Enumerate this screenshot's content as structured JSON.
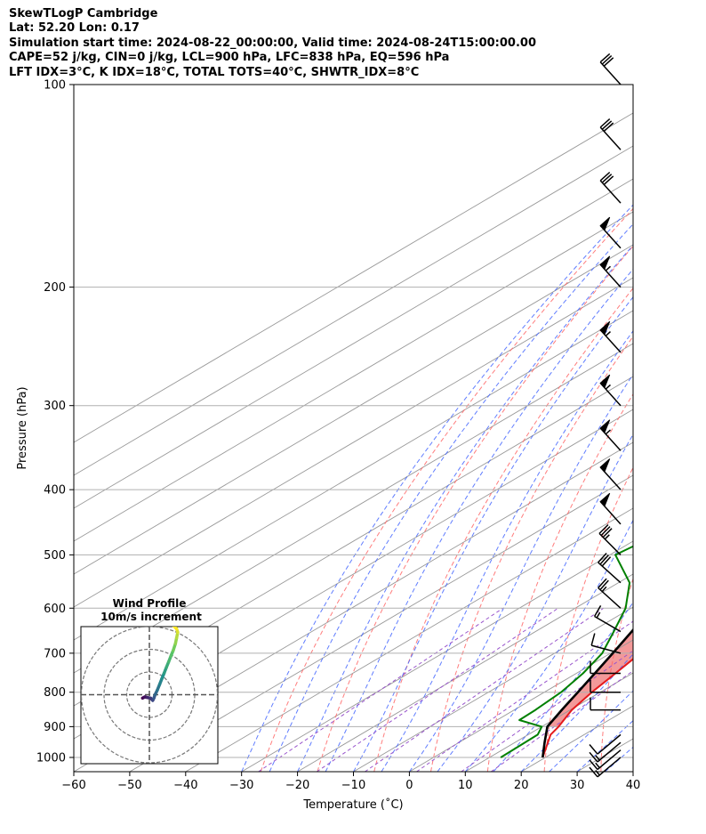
{
  "header": {
    "line1": "SkewTLogP Cambridge",
    "line2": "Lat: 52.20   Lon: 0.17",
    "line3": "Simulation start time: 2024-08-22_00:00:00, Valid time: 2024-08-24T15:00:00.00",
    "line4": "CAPE=52 j/kg, CIN=0 j/kg, LCL=900 hPa, LFC=838 hPa, EQ=596 hPa",
    "line5": "LFT IDX=3°C, K IDX=18°C, TOTAL TOTS=40°C, SHWTR_IDX=8°C"
  },
  "chart_data": {
    "type": "line",
    "subtype": "skew-T log-P diagram",
    "xlabel": "Temperature (˚C)",
    "ylabel": "Pressure (hPa)",
    "xlim": [
      -60,
      40
    ],
    "ylim": [
      1050,
      100
    ],
    "x_ticks": [
      -60,
      -50,
      -40,
      -30,
      -20,
      -10,
      0,
      10,
      20,
      30,
      40
    ],
    "x_tick_labels": [
      "−60",
      "−50",
      "−40",
      "−30",
      "−20",
      "−10",
      "0",
      "10",
      "20",
      "30",
      "40"
    ],
    "y_ticks": [
      1000,
      900,
      800,
      700,
      600,
      500,
      400,
      300,
      200,
      100
    ],
    "y_tick_labels": [
      "1000",
      "900",
      "800",
      "700",
      "600",
      "500",
      "400",
      "300",
      "200",
      "100"
    ],
    "colors": {
      "temperature": "#e41a1c",
      "dewpoint": "#008000",
      "parcel": "#000000",
      "cape_fill": "#7fb3d5",
      "cin_fill": "#f08080",
      "isotherm": "#999999",
      "dry_adiabat": "#ff6666",
      "moist_adiabat": "#4466ff",
      "mixing_ratio": "#9955cc",
      "wind_barb": "#000000"
    },
    "temperature_profile": [
      {
        "p": 1000,
        "t": 19.5
      },
      {
        "p": 925,
        "t": 14.0
      },
      {
        "p": 900,
        "t": 13.0
      },
      {
        "p": 850,
        "t": 10.3
      },
      {
        "p": 800,
        "t": 8.5
      },
      {
        "p": 750,
        "t": 7.0
      },
      {
        "p": 700,
        "t": 5.3
      },
      {
        "p": 650,
        "t": 4.0
      },
      {
        "p": 600,
        "t": 1.5
      },
      {
        "p": 550,
        "t": -1.7
      },
      {
        "p": 500,
        "t": -5.5
      },
      {
        "p": 450,
        "t": -10.3
      },
      {
        "p": 400,
        "t": -16.0
      },
      {
        "p": 350,
        "t": -23.0
      },
      {
        "p": 300,
        "t": -31.0
      },
      {
        "p": 275,
        "t": -35.6
      },
      {
        "p": 250,
        "t": -40.5
      },
      {
        "p": 225,
        "t": -45.5
      },
      {
        "p": 200,
        "t": -50.0
      },
      {
        "p": 175,
        "t": -53.0
      },
      {
        "p": 150,
        "t": -55.0
      },
      {
        "p": 125,
        "t": -56.0
      },
      {
        "p": 100,
        "t": -56.0
      }
    ],
    "dewpoint_profile": [
      {
        "p": 1000,
        "t": 12.0
      },
      {
        "p": 925,
        "t": 11.7
      },
      {
        "p": 900,
        "t": 10.0
      },
      {
        "p": 880,
        "t": 4.0
      },
      {
        "p": 850,
        "t": 3.8
      },
      {
        "p": 800,
        "t": 3.0
      },
      {
        "p": 750,
        "t": 1.2
      },
      {
        "p": 700,
        "t": -1.5
      },
      {
        "p": 650,
        "t": -6.0
      },
      {
        "p": 600,
        "t": -11.0
      },
      {
        "p": 550,
        "t": -18.0
      },
      {
        "p": 500,
        "t": -29.0
      },
      {
        "p": 475,
        "t": -28.0
      },
      {
        "p": 450,
        "t": -28.0
      },
      {
        "p": 425,
        "t": -25.5
      },
      {
        "p": 400,
        "t": -28.0
      },
      {
        "p": 370,
        "t": -33.0
      },
      {
        "p": 340,
        "t": -39.0
      },
      {
        "p": 300,
        "t": -46.0
      },
      {
        "p": 250,
        "t": -55.0
      },
      {
        "p": 200,
        "t": -63.0
      },
      {
        "p": 185,
        "t": -66.0
      },
      {
        "p": 175,
        "t": -69.0
      },
      {
        "p": 165,
        "t": -72.0
      },
      {
        "p": 160,
        "t": -75.0
      },
      {
        "p": 150,
        "t": -79.0
      },
      {
        "p": 125,
        "t": -88.0
      },
      {
        "p": 100,
        "t": -100.0
      }
    ],
    "parcel_profile": [
      {
        "p": 1000,
        "t": 19.5
      },
      {
        "p": 950,
        "t": 15.3
      },
      {
        "p": 900,
        "t": 11.0
      },
      {
        "p": 850,
        "t": 8.5
      },
      {
        "p": 800,
        "t": 6.0
      },
      {
        "p": 750,
        "t": 3.3
      },
      {
        "p": 700,
        "t": 0.4
      },
      {
        "p": 650,
        "t": -2.8
      },
      {
        "p": 600,
        "t": -6.4
      },
      {
        "p": 550,
        "t": -10.4
      },
      {
        "p": 500,
        "t": -15.2
      },
      {
        "p": 450,
        "t": -20.6
      },
      {
        "p": 400,
        "t": -27.0
      },
      {
        "p": 350,
        "t": -34.6
      },
      {
        "p": 300,
        "t": -43.6
      },
      {
        "p": 250,
        "t": -54.6
      },
      {
        "p": 200,
        "t": -67.5
      },
      {
        "p": 150,
        "t": -84.0
      },
      {
        "p": 125,
        "t": -94.0
      },
      {
        "p": 100,
        "t": -105.0
      }
    ],
    "wind_barbs": [
      {
        "p": 1000,
        "speed_kt": 15,
        "dir_deg": 230
      },
      {
        "p": 975,
        "speed_kt": 15,
        "dir_deg": 230
      },
      {
        "p": 950,
        "speed_kt": 15,
        "dir_deg": 230
      },
      {
        "p": 925,
        "speed_kt": 10,
        "dir_deg": 230
      },
      {
        "p": 850,
        "speed_kt": 10,
        "dir_deg": 270
      },
      {
        "p": 800,
        "speed_kt": 10,
        "dir_deg": 270
      },
      {
        "p": 750,
        "speed_kt": 10,
        "dir_deg": 270
      },
      {
        "p": 700,
        "speed_kt": 10,
        "dir_deg": 285
      },
      {
        "p": 650,
        "speed_kt": 15,
        "dir_deg": 300
      },
      {
        "p": 600,
        "speed_kt": 25,
        "dir_deg": 312
      },
      {
        "p": 550,
        "speed_kt": 30,
        "dir_deg": 312
      },
      {
        "p": 500,
        "speed_kt": 35,
        "dir_deg": 315
      },
      {
        "p": 450,
        "speed_kt": 50,
        "dir_deg": 318
      },
      {
        "p": 400,
        "speed_kt": 50,
        "dir_deg": 318
      },
      {
        "p": 350,
        "speed_kt": 55,
        "dir_deg": 318
      },
      {
        "p": 300,
        "speed_kt": 55,
        "dir_deg": 318
      },
      {
        "p": 250,
        "speed_kt": 55,
        "dir_deg": 318
      },
      {
        "p": 200,
        "speed_kt": 55,
        "dir_deg": 318
      },
      {
        "p": 175,
        "speed_kt": 50,
        "dir_deg": 318
      },
      {
        "p": 150,
        "speed_kt": 30,
        "dir_deg": 318
      },
      {
        "p": 125,
        "speed_kt": 30,
        "dir_deg": 318
      },
      {
        "p": 100,
        "speed_kt": 30,
        "dir_deg": 318
      }
    ],
    "hodograph": {
      "title_line1": "Wind Profile",
      "title_line2": "10m/s increment",
      "ring_increment_ms": 10,
      "rings": [
        10,
        20,
        30
      ],
      "colors": [
        "#440154",
        "#3b528b",
        "#21918c",
        "#5ec962",
        "#fde725"
      ],
      "points_uv_ms": [
        [
          -3.0,
          -1.5
        ],
        [
          -2.0,
          -1.0
        ],
        [
          -1.0,
          -1.2
        ],
        [
          0.5,
          -1.5
        ],
        [
          1.5,
          -2.5
        ],
        [
          2.0,
          -1.5
        ],
        [
          2.5,
          0.0
        ],
        [
          3.5,
          2.0
        ],
        [
          4.5,
          4.5
        ],
        [
          5.5,
          7.0
        ],
        [
          6.5,
          9.5
        ],
        [
          7.5,
          12.0
        ],
        [
          8.5,
          14.5
        ],
        [
          9.5,
          17.0
        ],
        [
          10.5,
          19.5
        ],
        [
          11.5,
          22.5
        ],
        [
          12.0,
          25.0
        ],
        [
          12.5,
          27.5
        ],
        [
          12.0,
          29.0
        ],
        [
          10.5,
          30.5
        ]
      ]
    }
  }
}
